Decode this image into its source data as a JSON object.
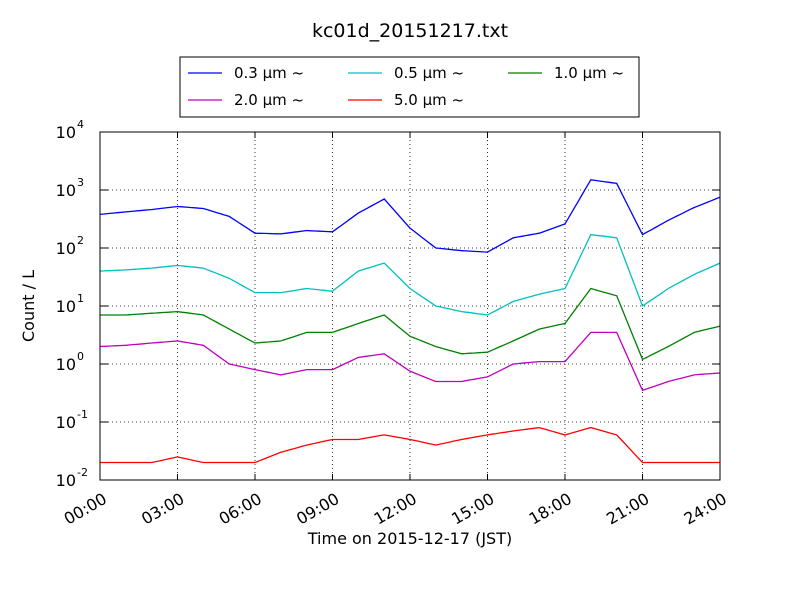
{
  "chart_data": {
    "type": "line",
    "title": "kc01d_20151217.txt",
    "xlabel": "Time on 2015-12-17 (JST)",
    "ylabel": "Count / L",
    "yscale": "log",
    "ylim": [
      0.01,
      10000
    ],
    "xlim": [
      "2015-12-17 00:00",
      "2015-12-18 00:00"
    ],
    "x_ticks": [
      "00:00",
      "03:00",
      "06:00",
      "09:00",
      "12:00",
      "15:00",
      "18:00",
      "21:00",
      "24:00"
    ],
    "y_ticks": [
      {
        "base": "10",
        "exp": "-2",
        "value": 0.01
      },
      {
        "base": "10",
        "exp": "-1",
        "value": 0.1
      },
      {
        "base": "10",
        "exp": "0",
        "value": 1
      },
      {
        "base": "10",
        "exp": "1",
        "value": 10
      },
      {
        "base": "10",
        "exp": "2",
        "value": 100
      },
      {
        "base": "10",
        "exp": "3",
        "value": 1000
      },
      {
        "base": "10",
        "exp": "4",
        "value": 10000
      }
    ],
    "grid": true,
    "legend_position": "top-center",
    "x": [
      "00:00",
      "01:00",
      "02:00",
      "03:00",
      "04:00",
      "05:00",
      "06:00",
      "07:00",
      "08:00",
      "09:00",
      "10:00",
      "11:00",
      "12:00",
      "13:00",
      "14:00",
      "15:00",
      "16:00",
      "17:00",
      "18:00",
      "19:00",
      "20:00",
      "21:00",
      "22:00",
      "23:00",
      "24:00"
    ],
    "series": [
      {
        "name": "0.3 μm ~",
        "color": "#0000ff",
        "values": [
          380,
          420,
          460,
          520,
          480,
          350,
          180,
          175,
          200,
          190,
          400,
          700,
          220,
          100,
          90,
          85,
          150,
          180,
          260,
          1500,
          1300,
          170,
          300,
          500,
          750
        ]
      },
      {
        "name": "0.5 μm ~",
        "color": "#00bfbf",
        "values": [
          40,
          42,
          45,
          50,
          45,
          30,
          17,
          17,
          20,
          18,
          40,
          55,
          20,
          10,
          8,
          7,
          12,
          16,
          20,
          170,
          150,
          10,
          20,
          35,
          55
        ]
      },
      {
        "name": "1.0 μm ~",
        "color": "#008000",
        "values": [
          7,
          7,
          7.5,
          8,
          7,
          4,
          2.3,
          2.5,
          3.5,
          3.5,
          5,
          7,
          3,
          2,
          1.5,
          1.6,
          2.5,
          4,
          5,
          20,
          15,
          1.2,
          2,
          3.5,
          4.5
        ]
      },
      {
        "name": "2.0 μm ~",
        "color": "#bf00bf",
        "values": [
          2,
          2.1,
          2.3,
          2.5,
          2.1,
          1,
          0.8,
          0.65,
          0.8,
          0.8,
          1.3,
          1.5,
          0.75,
          0.5,
          0.5,
          0.6,
          1,
          1.1,
          1.1,
          3.5,
          3.5,
          0.35,
          0.5,
          0.65,
          0.7
        ]
      },
      {
        "name": "5.0 μm ~",
        "color": "#ff0000",
        "values": [
          0.02,
          0.02,
          0.02,
          0.025,
          0.02,
          0.02,
          0.02,
          0.03,
          0.04,
          0.05,
          0.05,
          0.06,
          0.05,
          0.04,
          0.05,
          0.06,
          0.07,
          0.08,
          0.06,
          0.08,
          0.06,
          0.02,
          0.02,
          0.02,
          0.02
        ]
      }
    ]
  }
}
